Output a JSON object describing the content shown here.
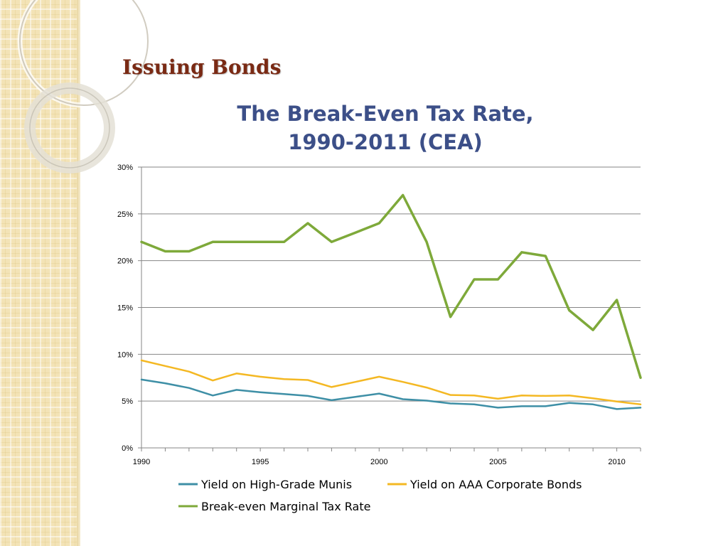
{
  "slide": {
    "title": "Issuing Bonds"
  },
  "colors": {
    "sidebar": "#f3e3b6",
    "title": "#7a2a14",
    "chart_title": "#3c4f88",
    "gridline": "#868686"
  },
  "chart_data": {
    "type": "line",
    "title_lines": [
      "The Break-Even Tax Rate,",
      "1990-2011 (CEA)"
    ],
    "xlabel": "",
    "ylabel": "",
    "x": [
      1990,
      1991,
      1992,
      1993,
      1994,
      1995,
      1996,
      1997,
      1998,
      1999,
      2000,
      2001,
      2002,
      2003,
      2004,
      2005,
      2006,
      2007,
      2008,
      2009,
      2010,
      2011
    ],
    "xlim": [
      1990,
      2011
    ],
    "ylim": [
      0,
      30
    ],
    "x_ticks": [
      1990,
      1995,
      2000,
      2005,
      2010
    ],
    "y_ticks": [
      0,
      5,
      10,
      15,
      20,
      25,
      30
    ],
    "y_tick_labels": [
      "0%",
      "5%",
      "10%",
      "15%",
      "20%",
      "25%",
      "30%"
    ],
    "grid": "horizontal",
    "legend_position": "bottom",
    "series": [
      {
        "name": "Yield on High-Grade Munis",
        "color": "#3e8fa6",
        "values": [
          7.3,
          6.9,
          6.4,
          5.6,
          6.2,
          5.95,
          5.75,
          5.55,
          5.1,
          5.45,
          5.8,
          5.2,
          5.05,
          4.75,
          4.65,
          4.3,
          4.45,
          4.45,
          4.8,
          4.65,
          4.15,
          4.3
        ]
      },
      {
        "name": "Yield on AAA Corporate Bonds",
        "color": "#f4b823",
        "values": [
          9.35,
          8.75,
          8.15,
          7.2,
          7.95,
          7.6,
          7.35,
          7.25,
          6.5,
          7.05,
          7.6,
          7.05,
          6.45,
          5.65,
          5.6,
          5.25,
          5.6,
          5.55,
          5.6,
          5.3,
          4.95,
          4.65
        ]
      },
      {
        "name": "Break-even Marginal Tax Rate",
        "color": "#7ea93a",
        "values": [
          22,
          21,
          21,
          22,
          22,
          22,
          22,
          24,
          22,
          23,
          24,
          27,
          22,
          14,
          18,
          18,
          20.9,
          20.5,
          14.7,
          12.6,
          15.8,
          7.5
        ]
      }
    ]
  }
}
